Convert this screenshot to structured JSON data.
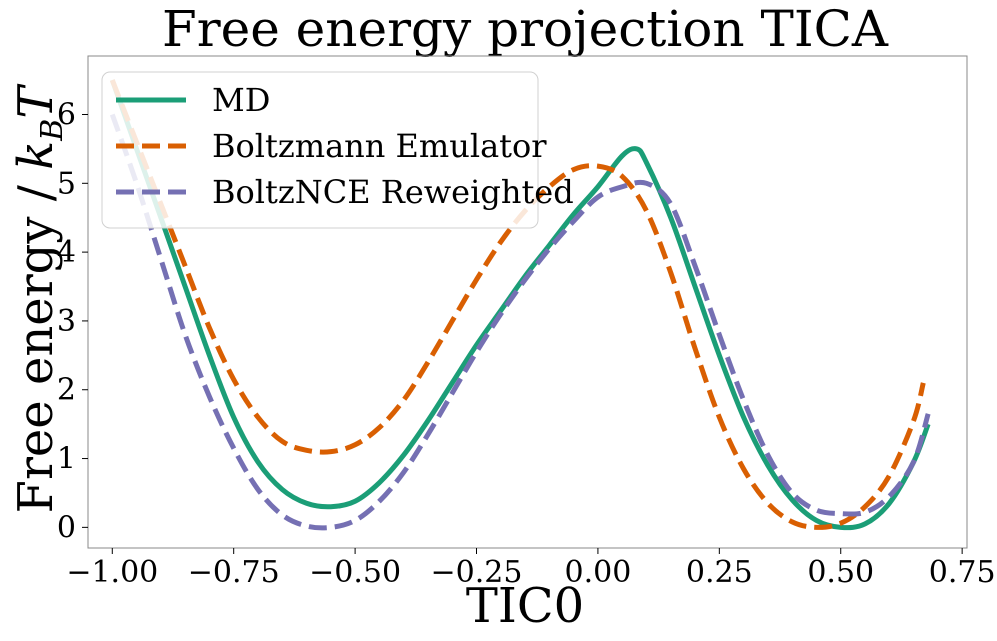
{
  "chart_data": {
    "type": "line",
    "title": "Free energy projection TICA",
    "xlabel": "TIC0",
    "ylabel": "Free energy / k_BT",
    "ylabel_main": "Free energy / ",
    "ylabel_k": "k",
    "ylabel_sub": "B",
    "ylabel_T": "T",
    "xlim": [
      -1.05,
      0.76
    ],
    "ylim": [
      -0.3,
      6.85
    ],
    "xticks": [
      -1.0,
      -0.75,
      -0.5,
      -0.25,
      0.0,
      0.25,
      0.5,
      0.75
    ],
    "xtick_labels": [
      "−1.00",
      "−0.75",
      "−0.50",
      "−0.25",
      "0.00",
      "0.25",
      "0.50",
      "0.75"
    ],
    "yticks": [
      0,
      1,
      2,
      3,
      4,
      5,
      6
    ],
    "ytick_labels": [
      "0",
      "1",
      "2",
      "3",
      "4",
      "5",
      "6"
    ],
    "grid": false,
    "legend_position": "top-left",
    "series": [
      {
        "name": "MD",
        "color": "#1b9e77",
        "dash": "solid",
        "x": [
          -1.0,
          -0.95,
          -0.9,
          -0.85,
          -0.8,
          -0.75,
          -0.7,
          -0.65,
          -0.6,
          -0.55,
          -0.5,
          -0.45,
          -0.4,
          -0.35,
          -0.3,
          -0.25,
          -0.2,
          -0.15,
          -0.1,
          -0.05,
          0.0,
          0.05,
          0.08,
          0.1,
          0.15,
          0.2,
          0.25,
          0.3,
          0.35,
          0.4,
          0.45,
          0.5,
          0.55,
          0.6,
          0.65,
          0.68
        ],
        "y": [
          6.5,
          5.5,
          4.5,
          3.5,
          2.5,
          1.6,
          0.95,
          0.55,
          0.35,
          0.3,
          0.38,
          0.65,
          1.05,
          1.55,
          2.1,
          2.65,
          3.15,
          3.65,
          4.1,
          4.55,
          4.95,
          5.4,
          5.5,
          5.3,
          4.5,
          3.5,
          2.5,
          1.6,
          0.9,
          0.4,
          0.1,
          0.0,
          0.05,
          0.35,
          0.95,
          1.5
        ]
      },
      {
        "name": "Boltzmann Emulator",
        "color": "#d95f02",
        "dash": "dashed",
        "x": [
          -1.0,
          -0.95,
          -0.9,
          -0.85,
          -0.8,
          -0.75,
          -0.7,
          -0.65,
          -0.6,
          -0.55,
          -0.5,
          -0.45,
          -0.4,
          -0.35,
          -0.3,
          -0.25,
          -0.2,
          -0.15,
          -0.1,
          -0.05,
          0.0,
          0.05,
          0.1,
          0.15,
          0.2,
          0.25,
          0.3,
          0.35,
          0.4,
          0.45,
          0.5,
          0.55,
          0.6,
          0.65,
          0.67
        ],
        "y": [
          6.5,
          5.6,
          4.7,
          3.8,
          2.9,
          2.15,
          1.6,
          1.25,
          1.12,
          1.1,
          1.2,
          1.45,
          1.85,
          2.4,
          3.0,
          3.6,
          4.15,
          4.6,
          4.95,
          5.2,
          5.25,
          5.1,
          4.6,
          3.7,
          2.6,
          1.6,
          0.85,
          0.35,
          0.08,
          0.0,
          0.06,
          0.3,
          0.75,
          1.55,
          2.1
        ]
      },
      {
        "name": "BoltzNCE Reweighted",
        "color": "#7570b3",
        "dash": "dashed",
        "x": [
          -1.0,
          -0.95,
          -0.9,
          -0.85,
          -0.8,
          -0.75,
          -0.7,
          -0.65,
          -0.6,
          -0.55,
          -0.5,
          -0.45,
          -0.4,
          -0.35,
          -0.3,
          -0.25,
          -0.2,
          -0.15,
          -0.1,
          -0.05,
          0.0,
          0.05,
          0.1,
          0.15,
          0.2,
          0.25,
          0.3,
          0.35,
          0.4,
          0.45,
          0.5,
          0.55,
          0.6,
          0.65,
          0.68
        ],
        "y": [
          6.0,
          5.0,
          3.9,
          2.8,
          1.9,
          1.15,
          0.55,
          0.18,
          0.02,
          0.0,
          0.1,
          0.38,
          0.8,
          1.35,
          1.95,
          2.55,
          3.1,
          3.6,
          4.05,
          4.45,
          4.8,
          4.95,
          5.0,
          4.7,
          3.8,
          2.8,
          1.85,
          1.05,
          0.5,
          0.25,
          0.2,
          0.22,
          0.45,
          0.95,
          1.65
        ]
      }
    ]
  }
}
